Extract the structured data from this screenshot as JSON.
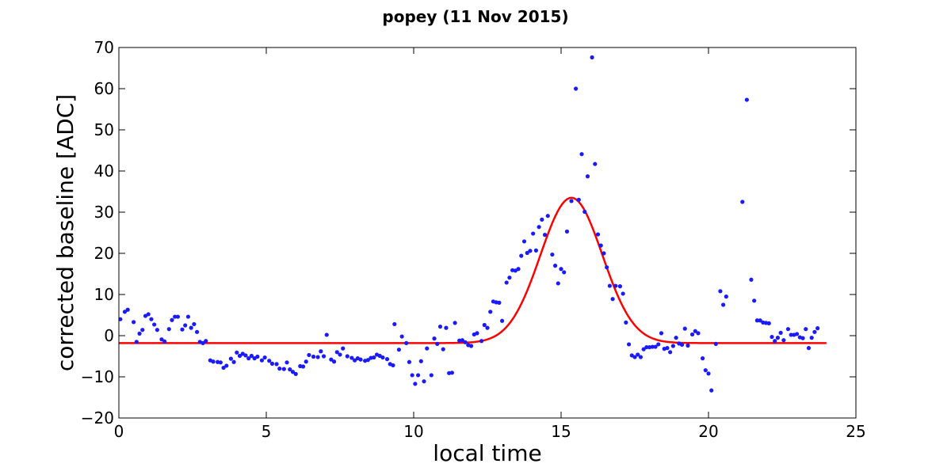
{
  "chart_data": {
    "type": "scatter",
    "title": "popey (11 Nov 2015)",
    "xlabel": "local time",
    "ylabel": "corrected baseline [ADC]",
    "xlim": [
      0,
      25
    ],
    "ylim": [
      -20,
      70
    ],
    "xticks": [
      0,
      5,
      10,
      15,
      20,
      25
    ],
    "yticks": [
      -20,
      -10,
      0,
      10,
      20,
      30,
      40,
      50,
      60,
      70
    ],
    "xtick_labels": [
      "0",
      "5",
      "10",
      "15",
      "20",
      "25"
    ],
    "ytick_labels": [
      "−20",
      "−10",
      "0",
      "10",
      "20",
      "30",
      "40",
      "50",
      "60",
      "70"
    ],
    "grid": false,
    "legend": "none",
    "series": [
      {
        "type": "scatter",
        "color": "#1a1aff",
        "points": [
          [
            0.05,
            4.0
          ],
          [
            0.2,
            5.8
          ],
          [
            0.3,
            6.3
          ],
          [
            0.5,
            3.3
          ],
          [
            0.6,
            -1.5
          ],
          [
            0.7,
            0.5
          ],
          [
            0.8,
            1.4
          ],
          [
            0.9,
            4.8
          ],
          [
            1.0,
            5.2
          ],
          [
            1.1,
            4.0
          ],
          [
            1.2,
            2.7
          ],
          [
            1.3,
            1.4
          ],
          [
            1.45,
            -0.9
          ],
          [
            1.55,
            -1.4
          ],
          [
            1.7,
            1.6
          ],
          [
            1.8,
            3.8
          ],
          [
            1.9,
            4.6
          ],
          [
            2.0,
            4.6
          ],
          [
            2.15,
            1.5
          ],
          [
            2.25,
            2.5
          ],
          [
            2.35,
            4.6
          ],
          [
            2.45,
            1.9
          ],
          [
            2.55,
            2.8
          ],
          [
            2.65,
            0.9
          ],
          [
            2.75,
            -1.5
          ],
          [
            2.85,
            -1.8
          ],
          [
            2.95,
            -1.3
          ],
          [
            3.1,
            -6.0
          ],
          [
            3.2,
            -6.3
          ],
          [
            3.35,
            -6.4
          ],
          [
            3.45,
            -6.5
          ],
          [
            3.55,
            -7.8
          ],
          [
            3.65,
            -7.3
          ],
          [
            3.8,
            -5.6
          ],
          [
            3.9,
            -6.4
          ],
          [
            4.0,
            -4.1
          ],
          [
            4.1,
            -4.9
          ],
          [
            4.2,
            -4.4
          ],
          [
            4.3,
            -4.8
          ],
          [
            4.4,
            -5.5
          ],
          [
            4.5,
            -4.9
          ],
          [
            4.6,
            -5.5
          ],
          [
            4.7,
            -5.1
          ],
          [
            4.85,
            -6.0
          ],
          [
            4.95,
            -5.3
          ],
          [
            5.1,
            -6.1
          ],
          [
            5.2,
            -6.8
          ],
          [
            5.35,
            -6.9
          ],
          [
            5.45,
            -8.0
          ],
          [
            5.6,
            -8.1
          ],
          [
            5.7,
            -6.5
          ],
          [
            5.8,
            -8.2
          ],
          [
            5.9,
            -8.8
          ],
          [
            6.0,
            -9.3
          ],
          [
            6.15,
            -7.4
          ],
          [
            6.25,
            -7.5
          ],
          [
            6.35,
            -6.3
          ],
          [
            6.45,
            -4.7
          ],
          [
            6.6,
            -5.1
          ],
          [
            6.75,
            -5.2
          ],
          [
            6.85,
            -3.8
          ],
          [
            6.95,
            -5.0
          ],
          [
            7.05,
            0.2
          ],
          [
            7.2,
            -5.8
          ],
          [
            7.3,
            -6.3
          ],
          [
            7.4,
            -4.0
          ],
          [
            7.5,
            -4.6
          ],
          [
            7.6,
            -3.1
          ],
          [
            7.75,
            -5.0
          ],
          [
            7.9,
            -5.4
          ],
          [
            8.0,
            -6.0
          ],
          [
            8.1,
            -5.5
          ],
          [
            8.2,
            -5.8
          ],
          [
            8.35,
            -6.1
          ],
          [
            8.45,
            -5.9
          ],
          [
            8.55,
            -5.4
          ],
          [
            8.65,
            -5.3
          ],
          [
            8.75,
            -4.6
          ],
          [
            8.85,
            -4.9
          ],
          [
            8.95,
            -5.3
          ],
          [
            9.1,
            -5.7
          ],
          [
            9.2,
            -6.9
          ],
          [
            9.3,
            -7.2
          ],
          [
            9.35,
            2.8
          ],
          [
            9.5,
            -3.4
          ],
          [
            9.6,
            -0.2
          ],
          [
            9.75,
            -1.8
          ],
          [
            9.85,
            -6.4
          ],
          [
            9.95,
            -9.6
          ],
          [
            10.05,
            -11.7
          ],
          [
            10.15,
            -9.6
          ],
          [
            10.25,
            -6.2
          ],
          [
            10.35,
            -11.1
          ],
          [
            10.45,
            -3.1
          ],
          [
            10.6,
            -9.6
          ],
          [
            10.7,
            -0.7
          ],
          [
            10.8,
            -2.0
          ],
          [
            10.9,
            2.2
          ],
          [
            11.0,
            -3.3
          ],
          [
            11.1,
            1.9
          ],
          [
            11.2,
            -9.1
          ],
          [
            11.3,
            -9.0
          ],
          [
            11.4,
            3.1
          ],
          [
            11.55,
            -1.2
          ],
          [
            11.65,
            -1.1
          ],
          [
            11.75,
            -1.6
          ],
          [
            11.85,
            -2.3
          ],
          [
            11.95,
            -2.5
          ],
          [
            12.05,
            0.3
          ],
          [
            12.15,
            0.6
          ],
          [
            12.3,
            -1.3
          ],
          [
            12.4,
            2.6
          ],
          [
            12.5,
            1.9
          ],
          [
            12.6,
            5.8
          ],
          [
            12.7,
            8.3
          ],
          [
            12.8,
            8.1
          ],
          [
            12.9,
            8.0
          ],
          [
            13.0,
            3.6
          ],
          [
            13.15,
            12.9
          ],
          [
            13.25,
            14.1
          ],
          [
            13.35,
            15.9
          ],
          [
            13.45,
            15.8
          ],
          [
            13.55,
            16.2
          ],
          [
            13.65,
            19.4
          ],
          [
            13.75,
            22.9
          ],
          [
            13.85,
            20.1
          ],
          [
            13.95,
            20.6
          ],
          [
            14.05,
            24.8
          ],
          [
            14.15,
            20.7
          ],
          [
            14.25,
            26.4
          ],
          [
            14.35,
            28.2
          ],
          [
            14.45,
            24.5
          ],
          [
            14.55,
            29.1
          ],
          [
            14.7,
            19.7
          ],
          [
            14.8,
            17.0
          ],
          [
            14.9,
            12.7
          ],
          [
            15.0,
            16.2
          ],
          [
            15.1,
            15.4
          ],
          [
            15.2,
            25.3
          ],
          [
            15.35,
            32.7
          ],
          [
            15.5,
            60.0
          ],
          [
            15.6,
            33.0
          ],
          [
            15.7,
            44.1
          ],
          [
            15.8,
            30.1
          ],
          [
            15.9,
            38.7
          ],
          [
            16.05,
            67.6
          ],
          [
            16.15,
            41.7
          ],
          [
            16.25,
            24.6
          ],
          [
            16.35,
            21.9
          ],
          [
            16.45,
            20.0
          ],
          [
            16.55,
            16.6
          ],
          [
            16.65,
            12.1
          ],
          [
            16.75,
            8.9
          ],
          [
            16.85,
            12.1
          ],
          [
            17.0,
            12.0
          ],
          [
            17.1,
            10.2
          ],
          [
            17.2,
            3.2
          ],
          [
            17.3,
            -2.1
          ],
          [
            17.4,
            -4.8
          ],
          [
            17.5,
            -5.2
          ],
          [
            17.6,
            -4.6
          ],
          [
            17.7,
            -5.2
          ],
          [
            17.8,
            -3.3
          ],
          [
            17.9,
            -2.8
          ],
          [
            18.0,
            -2.8
          ],
          [
            18.1,
            -2.7
          ],
          [
            18.2,
            -2.7
          ],
          [
            18.3,
            -2.1
          ],
          [
            18.4,
            0.6
          ],
          [
            18.5,
            -3.2
          ],
          [
            18.6,
            -3.0
          ],
          [
            18.7,
            -4.0
          ],
          [
            18.8,
            -2.5
          ],
          [
            18.9,
            -0.5
          ],
          [
            19.0,
            -1.9
          ],
          [
            19.1,
            -2.2
          ],
          [
            19.2,
            1.7
          ],
          [
            19.3,
            -2.4
          ],
          [
            19.45,
            0.3
          ],
          [
            19.55,
            1.1
          ],
          [
            19.65,
            0.6
          ],
          [
            19.8,
            -5.5
          ],
          [
            19.9,
            -8.4
          ],
          [
            20.0,
            -9.2
          ],
          [
            20.1,
            -13.3
          ],
          [
            20.25,
            -2.0
          ],
          [
            20.4,
            10.8
          ],
          [
            20.5,
            7.5
          ],
          [
            20.6,
            9.5
          ],
          [
            21.15,
            32.5
          ],
          [
            21.3,
            57.3
          ],
          [
            21.45,
            13.6
          ],
          [
            21.55,
            8.5
          ],
          [
            21.65,
            3.7
          ],
          [
            21.75,
            3.7
          ],
          [
            21.85,
            3.2
          ],
          [
            21.95,
            3.1
          ],
          [
            22.05,
            3.0
          ],
          [
            22.15,
            -0.3
          ],
          [
            22.25,
            -1.3
          ],
          [
            22.35,
            -0.5
          ],
          [
            22.45,
            0.7
          ],
          [
            22.55,
            -1.1
          ],
          [
            22.7,
            1.6
          ],
          [
            22.8,
            0.2
          ],
          [
            22.9,
            0.2
          ],
          [
            23.0,
            0.4
          ],
          [
            23.1,
            -0.4
          ],
          [
            23.2,
            -0.6
          ],
          [
            23.3,
            1.6
          ],
          [
            23.4,
            -3.0
          ],
          [
            23.5,
            -0.5
          ],
          [
            23.6,
            0.9
          ],
          [
            23.7,
            1.8
          ]
        ]
      },
      {
        "type": "line",
        "color": "#ff0000",
        "model": "gaussian",
        "baseline": -1.8,
        "amplitude": 35.3,
        "center": 15.35,
        "sigma": 1.05,
        "x_range": [
          0,
          24
        ]
      }
    ]
  }
}
